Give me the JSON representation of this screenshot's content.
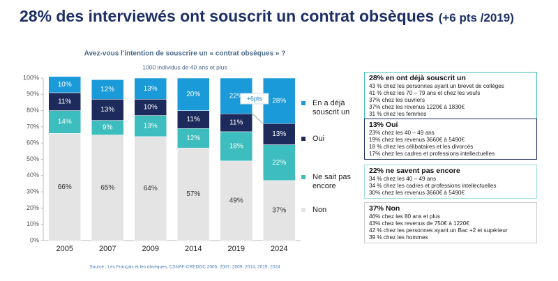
{
  "chart_data": {
    "type": "stacked_bar",
    "title": "28% des interviewés ont souscrit un contrat obsèques",
    "title_note": "(+6 pts /2019)",
    "subtitle": "Avez-vous l'intention de souscrire un « contrat obsèques » ?",
    "sample": "1000 individus de 40 ans et plus",
    "source": "Source : Les Français et les obsèques, CSNAF-CREDOC 2005, 2007, 2009, 2014, 2019, 2024",
    "annotation": "+6pts",
    "categories": [
      "2005",
      "2007",
      "2009",
      "2014",
      "2019",
      "2024"
    ],
    "series": [
      {
        "name": "Non",
        "color": "#e4e4e4",
        "values": [
          66,
          65,
          64,
          57,
          49,
          37
        ],
        "value_labels": [
          "66%",
          "65%",
          "64%",
          "57%",
          "49%",
          "37%"
        ]
      },
      {
        "name": "Ne sait pas encore",
        "color": "#3dbdbd",
        "values": [
          14,
          9,
          13,
          12,
          18,
          22
        ],
        "value_labels": [
          "14%",
          "9%",
          "13%",
          "12%",
          "18%",
          "22%"
        ]
      },
      {
        "name": "Oui",
        "color": "#1c2b5c",
        "values": [
          11,
          13,
          10,
          11,
          11,
          13
        ],
        "value_labels": [
          "11%",
          "13%",
          "10%",
          "11%",
          "11%",
          "13%"
        ]
      },
      {
        "name": "En a déjà souscrit un",
        "color": "#1a9ad8",
        "values": [
          10,
          12,
          13,
          20,
          22,
          28
        ],
        "value_labels": [
          "10%",
          "12%",
          "13%",
          "20%",
          "22%",
          "28%"
        ]
      }
    ],
    "ylim": [
      0,
      100
    ],
    "yticks": [
      {
        "value": 0,
        "label": "0%"
      },
      {
        "value": 10,
        "label": "10%"
      },
      {
        "value": 20,
        "label": "20%"
      },
      {
        "value": 30,
        "label": "30%"
      },
      {
        "value": 40,
        "label": "40%"
      },
      {
        "value": 50,
        "label": "50%"
      },
      {
        "value": 60,
        "label": "60%"
      },
      {
        "value": 70,
        "label": "70%"
      },
      {
        "value": 80,
        "label": "80%"
      },
      {
        "value": 90,
        "label": "90%"
      },
      {
        "value": 100,
        "label": "100%"
      }
    ]
  },
  "boxes": [
    {
      "title": "28% en ont déjà souscrit un",
      "lines": [
        "43 % chez les personnes ayant un brevet de collèges",
        "41 % chez les 70 – 79 ans et chez les veufs",
        "37% chez les ouvriers",
        "37% chez les revenus 1220€ à 1830€",
        "31 % chez les femmes"
      ]
    },
    {
      "title": "13% Oui",
      "lines": [
        "23% chez les 40 – 49 ans",
        "19% chez les revenus 3660€ à 5490€",
        "18 % chez les célibataires et les divorcés",
        "17% chez les cadres et professions intellectuelles"
      ]
    },
    {
      "title": "22% ne savent pas encore",
      "lines": [
        "34 % chez les 40 – 49 ans",
        "34 % chez les cadres et professions intellectuelles",
        "30% chez les revenus 3660€ à 5490€"
      ]
    },
    {
      "title": "37% Non",
      "lines": [
        "46% chez les 80 ans et plus",
        "43% chez les revenus de 750€ à 1220€",
        "42 % chez les personnes ayant un Bac +2 et supérieur",
        "39 % chez les hommes"
      ]
    }
  ]
}
